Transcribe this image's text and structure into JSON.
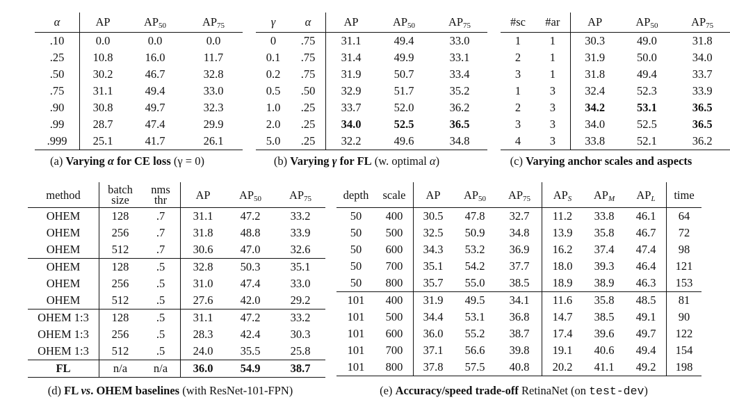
{
  "table_a": {
    "headers": [
      "α",
      "AP",
      "AP",
      "AP"
    ],
    "header_subs": [
      "",
      "",
      "50",
      "75"
    ],
    "rows": [
      [
        ".10",
        "0.0",
        "0.0",
        "0.0"
      ],
      [
        ".25",
        "10.8",
        "16.0",
        "11.7"
      ],
      [
        ".50",
        "30.2",
        "46.7",
        "32.8"
      ],
      [
        ".75",
        "31.1",
        "49.4",
        "33.0"
      ],
      [
        ".90",
        "30.8",
        "49.7",
        "32.3"
      ],
      [
        ".99",
        "28.7",
        "47.4",
        "29.9"
      ],
      [
        ".999",
        "25.1",
        "41.7",
        "26.1"
      ]
    ],
    "caption": {
      "prefix": "(a) ",
      "bold_1": "Varying ",
      "italic_1": "α",
      "bold_2": " for CE loss",
      "tail": " (γ = 0)"
    }
  },
  "table_b": {
    "headers": [
      "γ",
      "α",
      "AP",
      "AP",
      "AP"
    ],
    "header_subs": [
      "",
      "",
      "",
      "50",
      "75"
    ],
    "rows": [
      [
        "0",
        ".75",
        "31.1",
        "49.4",
        "33.0"
      ],
      [
        "0.1",
        ".75",
        "31.4",
        "49.9",
        "33.1"
      ],
      [
        "0.2",
        ".75",
        "31.9",
        "50.7",
        "33.4"
      ],
      [
        "0.5",
        ".50",
        "32.9",
        "51.7",
        "35.2"
      ],
      [
        "1.0",
        ".25",
        "33.7",
        "52.0",
        "36.2"
      ],
      [
        "2.0",
        ".25",
        "34.0",
        "52.5",
        "36.5"
      ],
      [
        "5.0",
        ".25",
        "32.2",
        "49.6",
        "34.8"
      ]
    ],
    "caption": {
      "prefix": "(b) ",
      "bold_1": "Varying ",
      "italic_1": "γ",
      "bold_2": " for FL",
      "tail_1": " (w. optimal ",
      "italic_2": "α",
      "tail_2": ")"
    }
  },
  "table_c": {
    "headers": [
      "#sc",
      "#ar",
      "AP",
      "AP",
      "AP"
    ],
    "header_subs": [
      "",
      "",
      "",
      "50",
      "75"
    ],
    "rows": [
      [
        "1",
        "1",
        "30.3",
        "49.0",
        "31.8"
      ],
      [
        "2",
        "1",
        "31.9",
        "50.0",
        "34.0"
      ],
      [
        "3",
        "1",
        "31.8",
        "49.4",
        "33.7"
      ],
      [
        "1",
        "3",
        "32.4",
        "52.3",
        "33.9"
      ],
      [
        "2",
        "3",
        "34.2",
        "53.1",
        "36.5"
      ],
      [
        "3",
        "3",
        "34.0",
        "52.5",
        "36.5"
      ],
      [
        "4",
        "3",
        "33.8",
        "52.1",
        "36.2"
      ]
    ],
    "caption": {
      "prefix": "(c) ",
      "bold_1": "Varying anchor scales and aspects"
    }
  },
  "table_d": {
    "headers": [
      "method",
      "batch",
      "size",
      "nms",
      "thr",
      "AP",
      "AP",
      "AP"
    ],
    "header_subs": [
      "50",
      "75"
    ],
    "groups": [
      [
        [
          "OHEM",
          "128",
          ".7",
          "31.1",
          "47.2",
          "33.2"
        ],
        [
          "OHEM",
          "256",
          ".7",
          "31.8",
          "48.8",
          "33.9"
        ],
        [
          "OHEM",
          "512",
          ".7",
          "30.6",
          "47.0",
          "32.6"
        ]
      ],
      [
        [
          "OHEM",
          "128",
          ".5",
          "32.8",
          "50.3",
          "35.1"
        ],
        [
          "OHEM",
          "256",
          ".5",
          "31.0",
          "47.4",
          "33.0"
        ],
        [
          "OHEM",
          "512",
          ".5",
          "27.6",
          "42.0",
          "29.2"
        ]
      ],
      [
        [
          "OHEM 1:3",
          "128",
          ".5",
          "31.1",
          "47.2",
          "33.2"
        ],
        [
          "OHEM 1:3",
          "256",
          ".5",
          "28.3",
          "42.4",
          "30.3"
        ],
        [
          "OHEM 1:3",
          "512",
          ".5",
          "24.0",
          "35.5",
          "25.8"
        ]
      ],
      [
        [
          "FL",
          "n/a",
          "n/a",
          "36.0",
          "54.9",
          "38.7"
        ]
      ]
    ],
    "caption": {
      "prefix": "(d) ",
      "bold_1": "FL ",
      "italic_1": "vs",
      "bold_2": ". OHEM baselines",
      "tail": " (with ResNet-101-FPN)"
    }
  },
  "table_e": {
    "headers": [
      "depth",
      "scale",
      "AP",
      "AP",
      "AP",
      "AP",
      "AP",
      "AP",
      "time"
    ],
    "header_subs": [
      "",
      "",
      "",
      "50",
      "75",
      "S",
      "M",
      "L",
      ""
    ],
    "groups": [
      [
        [
          "50",
          "400",
          "30.5",
          "47.8",
          "32.7",
          "11.2",
          "33.8",
          "46.1",
          "64"
        ],
        [
          "50",
          "500",
          "32.5",
          "50.9",
          "34.8",
          "13.9",
          "35.8",
          "46.7",
          "72"
        ],
        [
          "50",
          "600",
          "34.3",
          "53.2",
          "36.9",
          "16.2",
          "37.4",
          "47.4",
          "98"
        ],
        [
          "50",
          "700",
          "35.1",
          "54.2",
          "37.7",
          "18.0",
          "39.3",
          "46.4",
          "121"
        ],
        [
          "50",
          "800",
          "35.7",
          "55.0",
          "38.5",
          "18.9",
          "38.9",
          "46.3",
          "153"
        ]
      ],
      [
        [
          "101",
          "400",
          "31.9",
          "49.5",
          "34.1",
          "11.6",
          "35.8",
          "48.5",
          "81"
        ],
        [
          "101",
          "500",
          "34.4",
          "53.1",
          "36.8",
          "14.7",
          "38.5",
          "49.1",
          "90"
        ],
        [
          "101",
          "600",
          "36.0",
          "55.2",
          "38.7",
          "17.4",
          "39.6",
          "49.7",
          "122"
        ],
        [
          "101",
          "700",
          "37.1",
          "56.6",
          "39.8",
          "19.1",
          "40.6",
          "49.4",
          "154"
        ],
        [
          "101",
          "800",
          "37.8",
          "57.5",
          "40.8",
          "20.2",
          "41.1",
          "49.2",
          "198"
        ]
      ]
    ],
    "caption": {
      "prefix": "(e) ",
      "bold_1": "Accuracy/speed trade-off",
      "tail_1": " RetinaNet (on ",
      "mono": "test-dev",
      "tail_2": ")"
    }
  }
}
